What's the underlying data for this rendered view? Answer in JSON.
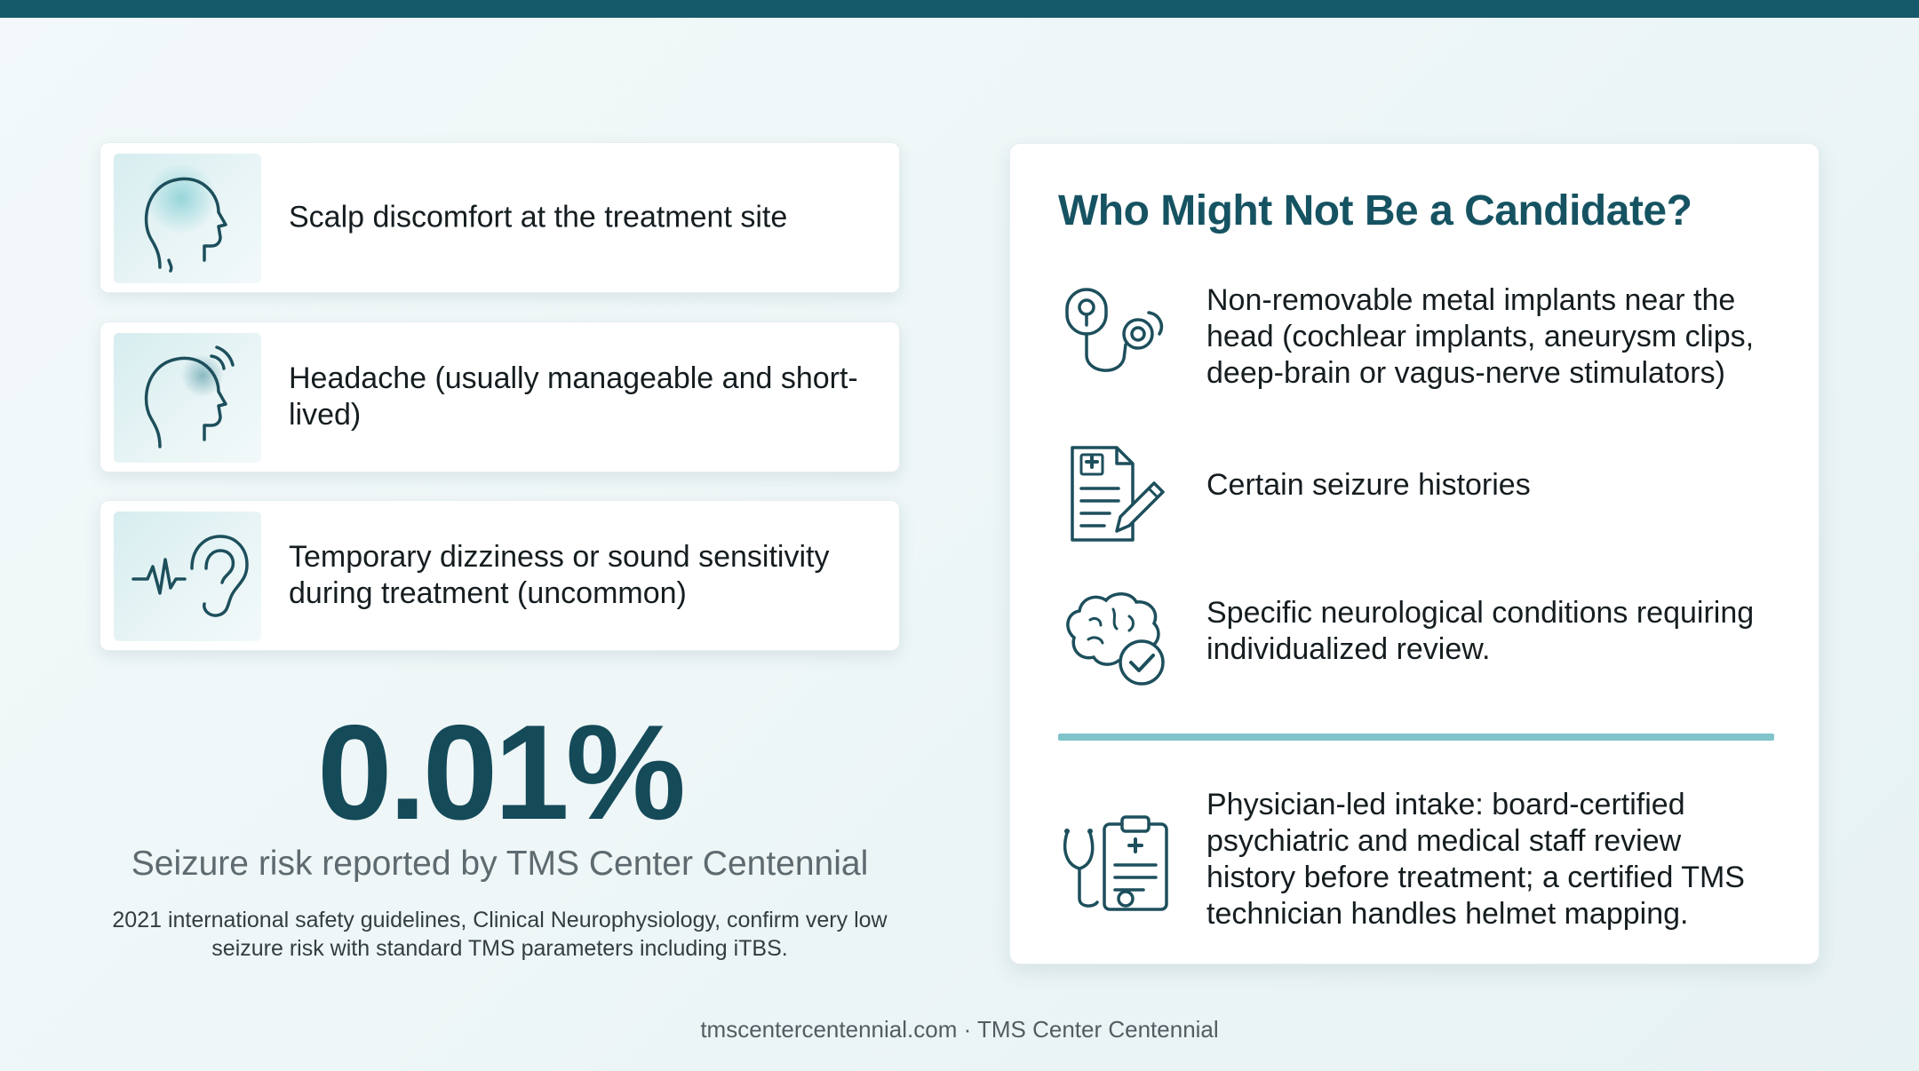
{
  "side_effects": [
    {
      "icon": "head-glow-icon",
      "label": "Scalp discomfort at the treatment site"
    },
    {
      "icon": "head-signal-icon",
      "label": "Headache (usually manageable and short-lived)"
    },
    {
      "icon": "ear-waveform-icon",
      "label": "Temporary dizziness or sound sensitivity during treatment (uncommon)"
    }
  ],
  "stat": {
    "value": "0.01%",
    "caption": "Seizure risk reported by TMS Center Centennial",
    "note": "2021 international safety guidelines, Clinical Neurophysiology, confirm very low seizure risk with standard TMS parameters including iTBS."
  },
  "candidates": {
    "title": "Who Might Not Be a Candidate?",
    "items": [
      {
        "icon": "implant-stethoscope-icon",
        "text": "Non-removable metal implants near the head (cochlear implants, aneurysm clips, deep-brain or vagus-nerve stimulators)"
      },
      {
        "icon": "medical-form-icon",
        "text": "Certain seizure histories"
      },
      {
        "icon": "brain-check-icon",
        "text": "Specific neurological conditions requiring individualized review."
      }
    ],
    "intake": {
      "icon": "clipboard-stethoscope-icon",
      "text": "Physician-led intake: board-certified psychiatric and medical staff review history before treatment; a certified TMS technician handles helmet mapping."
    }
  },
  "footer": "tmscentercentennial.com · TMS Center Centennial",
  "colors": {
    "accent": "#165362",
    "top_bar": "#145a6a",
    "divider": "#80c4cb",
    "icon_stroke": "#1d4f5c"
  }
}
